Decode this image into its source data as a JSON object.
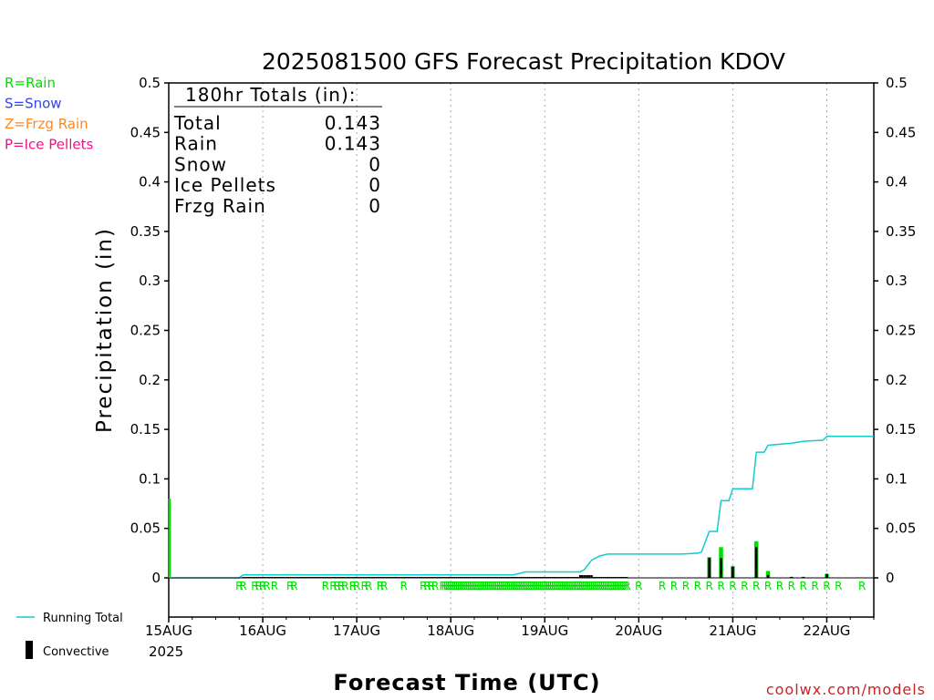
{
  "chart_data": {
    "type": "bar",
    "title": "2025081500 GFS Forecast Precipitation KDOV",
    "xlabel": "Forecast Time (UTC)",
    "ylabel": "Precipitation (in)",
    "ylim": [
      0,
      0.5
    ],
    "y_ticks": [
      0,
      0.05,
      0.1,
      0.15,
      0.2,
      0.25,
      0.3,
      0.35,
      0.4,
      0.45,
      0.5
    ],
    "x_range_hours": [
      0,
      180
    ],
    "x_ticks": [
      {
        "hour": 0,
        "label": "15AUG"
      },
      {
        "hour": 24,
        "label": "16AUG"
      },
      {
        "hour": 48,
        "label": "17AUG"
      },
      {
        "hour": 72,
        "label": "18AUG"
      },
      {
        "hour": 96,
        "label": "19AUG"
      },
      {
        "hour": 120,
        "label": "20AUG"
      },
      {
        "hour": 144,
        "label": "21AUG"
      },
      {
        "hour": 168,
        "label": "22AUG"
      }
    ],
    "year_label": "2025",
    "grid": true,
    "precip_type_legend": [
      {
        "text": "R=Rain",
        "color": "#00dd00"
      },
      {
        "text": "S=Snow",
        "color": "#3344ee"
      },
      {
        "text": "Z=Frzg Rain",
        "color": "#ff8822"
      },
      {
        "text": "P=Ice Pellets",
        "color": "#ee1188"
      }
    ],
    "series_legend": [
      {
        "name": "Running Total",
        "color": "#11cccc"
      },
      {
        "name": "Convective",
        "color": "#000000"
      }
    ],
    "totals": {
      "header": "180hr Totals (in):",
      "rows": [
        {
          "label": "Total",
          "value": "0.143"
        },
        {
          "label": "Rain",
          "value": "0.143"
        },
        {
          "label": "Snow",
          "value": "0"
        },
        {
          "label": "Ice Pellets",
          "value": "0"
        },
        {
          "label": "Frzg Rain",
          "value": "0"
        }
      ]
    },
    "precip_bars": [
      {
        "hour": 138,
        "total": 0.021,
        "convective": 0.02
      },
      {
        "hour": 141,
        "total": 0.031,
        "convective": 0.02
      },
      {
        "hour": 144,
        "total": 0.012,
        "convective": 0.011
      },
      {
        "hour": 150,
        "total": 0.037,
        "convective": 0.031
      },
      {
        "hour": 153,
        "total": 0.007,
        "convective": 0.003
      },
      {
        "hour": 159,
        "total": 0.001,
        "convective": 0.001
      },
      {
        "hour": 162,
        "total": 0.001,
        "convective": 0.001
      },
      {
        "hour": 168,
        "total": 0.004,
        "convective": 0.004
      }
    ],
    "running_total": [
      [
        0,
        0
      ],
      [
        18,
        0
      ],
      [
        19,
        0.003
      ],
      [
        88,
        0.003
      ],
      [
        91,
        0.006
      ],
      [
        105,
        0.006
      ],
      [
        106,
        0.008
      ],
      [
        108,
        0.018
      ],
      [
        110,
        0.022
      ],
      [
        112,
        0.024
      ],
      [
        131,
        0.024
      ],
      [
        135,
        0.025
      ],
      [
        136,
        0.026
      ],
      [
        138,
        0.047
      ],
      [
        140,
        0.047
      ],
      [
        141,
        0.078
      ],
      [
        143,
        0.078
      ],
      [
        144,
        0.09
      ],
      [
        149,
        0.09
      ],
      [
        150,
        0.127
      ],
      [
        152,
        0.127
      ],
      [
        153,
        0.134
      ],
      [
        159,
        0.136
      ],
      [
        162,
        0.138
      ],
      [
        167,
        0.139
      ],
      [
        168,
        0.143
      ],
      [
        180,
        0.143
      ]
    ],
    "ptype_hours": [
      18,
      19,
      22,
      23,
      24,
      25,
      27,
      31,
      32,
      40,
      42,
      43,
      44,
      45,
      47,
      48,
      50,
      51,
      54,
      55,
      60,
      65,
      66,
      67,
      68,
      70,
      70.5,
      71,
      71.5,
      72,
      72.5,
      73,
      73.5,
      74,
      74.5,
      75,
      75.5,
      76,
      76.5,
      77,
      77.5,
      78,
      78.5,
      79,
      79.5,
      80,
      80.5,
      81,
      81.5,
      82,
      82.5,
      83,
      83.5,
      84,
      84.5,
      85,
      85.5,
      86,
      86.5,
      87,
      87.5,
      88,
      88.5,
      89,
      89.5,
      90,
      90.5,
      91,
      91.5,
      92,
      92.5,
      93,
      93.5,
      94,
      94.5,
      95,
      95.5,
      96,
      96.5,
      97,
      97.5,
      98,
      98.5,
      99,
      99.5,
      100,
      100.5,
      101,
      101.5,
      102,
      102.5,
      103,
      103.5,
      104,
      104.5,
      105,
      105.5,
      106,
      106.5,
      107,
      107.5,
      108,
      108.5,
      109,
      109.5,
      110,
      110.5,
      111,
      111.5,
      112,
      112.5,
      113,
      113.5,
      114,
      114.5,
      115,
      115.5,
      116,
      116.5,
      117,
      120,
      126,
      129,
      132,
      135,
      138,
      141,
      144,
      147,
      150,
      153,
      156,
      159,
      162,
      165,
      168,
      171,
      177
    ],
    "ptype_letter": "R",
    "initial_spike_value": 0.08,
    "credit": "coolwx.com/models"
  }
}
